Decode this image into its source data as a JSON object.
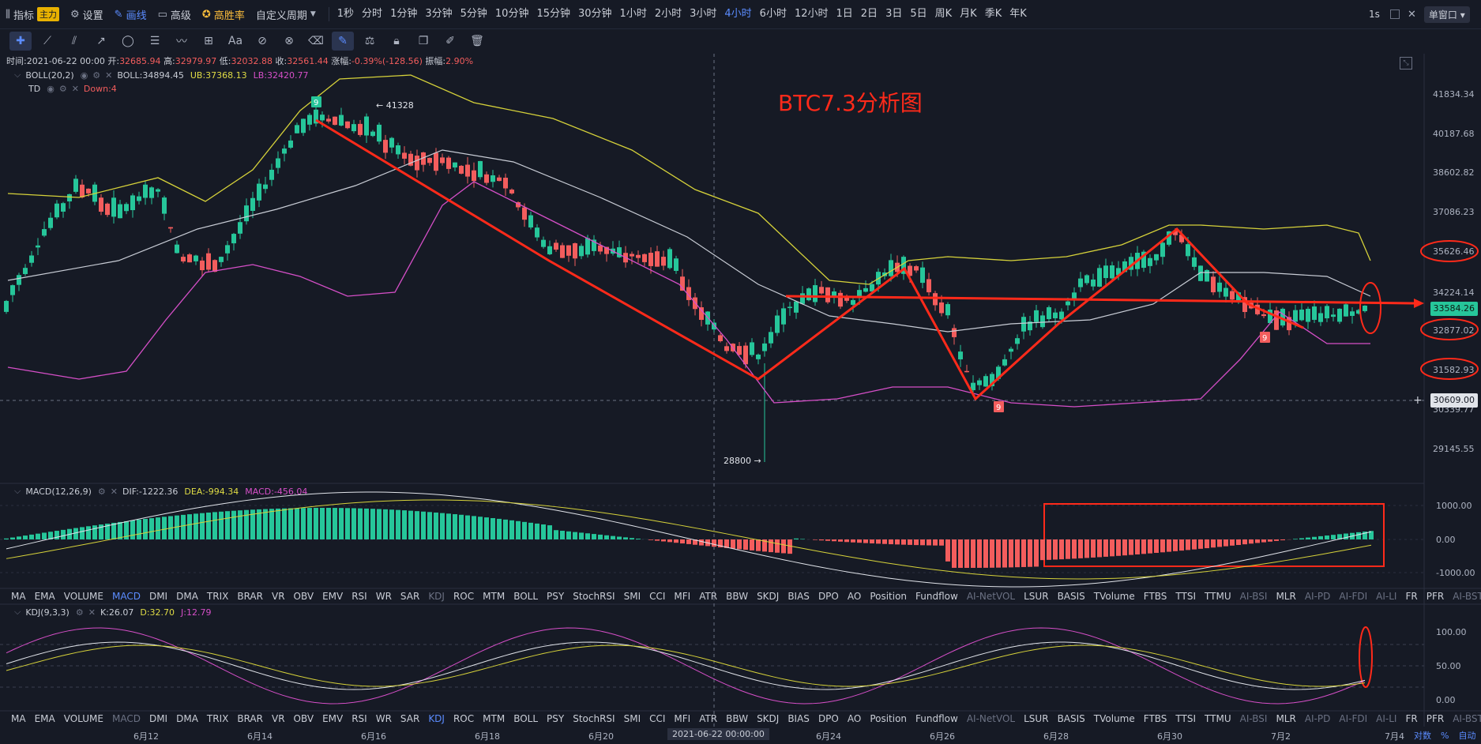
{
  "toolbar": {
    "indicators": "指标",
    "main_badge": "主力",
    "settings": "设置",
    "draw": "画线",
    "advanced": "高级",
    "win_rate": "高胜率",
    "custom_period": "自定义周期",
    "periods": [
      "1秒",
      "分时",
      "1分钟",
      "3分钟",
      "5分钟",
      "10分钟",
      "15分钟",
      "30分钟",
      "1小时",
      "2小时",
      "3小时",
      "4小时",
      "6小时",
      "12小时",
      "1日",
      "2日",
      "3日",
      "5日",
      "周K",
      "月K",
      "季K",
      "年K"
    ],
    "active_period": "4小时",
    "refresh": "1s",
    "window_mode": "单窗口"
  },
  "ohlc": {
    "time_label": "时间:",
    "time": "2021-06-22 00:00",
    "open_label": "开:",
    "open": "32685.94",
    "high_label": "高:",
    "high": "32979.97",
    "low_label": "低:",
    "low": "32032.88",
    "close_label": "收:",
    "close": "32561.44",
    "change_label": "涨幅:",
    "change": "-0.39%(-128.56)",
    "amp_label": "振幅:",
    "amp": "2.90%"
  },
  "boll": {
    "name": "BOLL(20,2)",
    "mid": "BOLL:34894.45",
    "ub": "UB:37368.13",
    "lb": "LB:32420.77"
  },
  "td": {
    "name": "TD",
    "down": "Down:4"
  },
  "macd": {
    "name": "MACD(12,26,9)",
    "dif": "DIF:-1222.36",
    "dea": "DEA:-994.34",
    "macd": "MACD:-456.04"
  },
  "kdj": {
    "name": "KDJ(9,3,3)",
    "k": "K:26.07",
    "d": "D:32.70",
    "j": "J:12.79"
  },
  "annotation_title": "BTC7.3分析图",
  "price_axis": [
    "41834.34",
    "40187.68",
    "38602.82",
    "37086.23",
    "35626.46",
    "34224.14",
    "32877.02",
    "31582.93",
    "30339.77",
    "29145.55"
  ],
  "current_price": "33584.26",
  "crosshair_price": "30609.00",
  "high_marker": "← 41328",
  "low_marker": "28800 →",
  "td_markers": [
    "9",
    "9",
    "9"
  ],
  "macd_axis": [
    "1000.00",
    "0.00",
    "-1000.00"
  ],
  "kdj_axis": [
    "100.00",
    "50.00",
    "0.00"
  ],
  "indicator_tabs": [
    "MA",
    "EMA",
    "VOLUME",
    "MACD",
    "DMI",
    "DMA",
    "TRIX",
    "BRAR",
    "VR",
    "OBV",
    "EMV",
    "RSI",
    "WR",
    "SAR",
    "KDJ",
    "ROC",
    "MTM",
    "BOLL",
    "PSY",
    "StochRSI",
    "SMI",
    "CCI",
    "MFI",
    "ATR",
    "BBW",
    "SKDJ",
    "BIAS",
    "DPO",
    "AO",
    "Position",
    "Fundflow",
    "AI-NetVOL",
    "LSUR",
    "BASIS",
    "TVolume",
    "FTBS",
    "TTSI",
    "TTMU",
    "AI-BSI",
    "MLR",
    "AI-PD",
    "AI-FDI",
    "AI-LI",
    "FR",
    "PFR",
    "AI-BST"
  ],
  "dim_tabs_1": [
    "KDJ",
    "AI-NetVOL",
    "AI-BSI",
    "AI-PD",
    "AI-FDI",
    "AI-LI",
    "AI-BST"
  ],
  "dim_tabs_2": [
    "MACD",
    "AI-NetVOL",
    "AI-BSI",
    "AI-PD",
    "AI-FDI",
    "AI-LI",
    "AI-BST"
  ],
  "active_tab_1": "MACD",
  "active_tab_2": "KDJ",
  "time_axis": [
    "6月12",
    "6月14",
    "6月16",
    "6月18",
    "6月20",
    "6月24",
    "6月26",
    "6月28",
    "6月30",
    "7月2",
    "7月4"
  ],
  "crosshair_time": "2021-06-22 00:00:00",
  "bottom_right": [
    "对数",
    "%",
    "自动"
  ],
  "colors": {
    "up": "#26c69a",
    "down": "#f35d5d",
    "annot": "#ff2a1a",
    "boll_up": "#d6d23a",
    "boll_mid": "#c9cdd6",
    "boll_low": "#d64fc8"
  }
}
